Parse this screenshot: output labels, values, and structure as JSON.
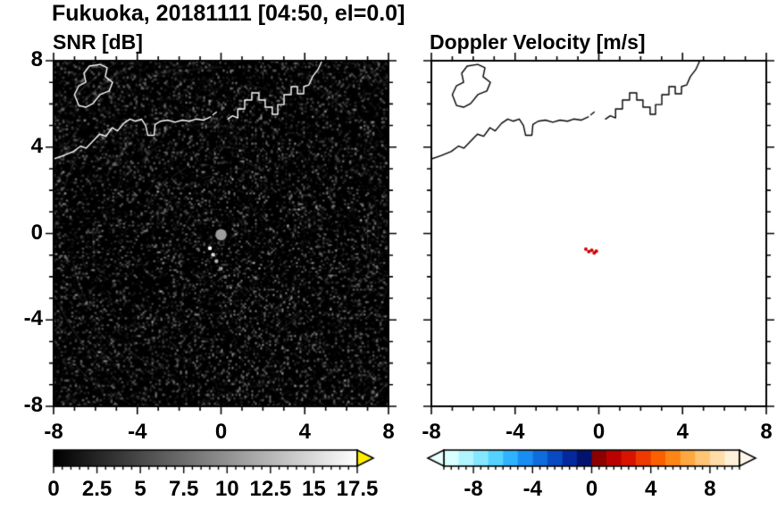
{
  "title": "Fukuoka, 20181111 [04:50, el=0.0]",
  "panels": {
    "snr": {
      "label": "SNR [dB]"
    },
    "doppler": {
      "label": "Doppler Velocity [m/s]"
    }
  },
  "coastline": {
    "polylines": [
      {
        "name": "coast-west",
        "closed": false,
        "points": [
          [
            -8,
            3.45
          ],
          [
            -7.55,
            3.6
          ],
          [
            -7.05,
            3.8
          ],
          [
            -6.7,
            4.05
          ],
          [
            -6.45,
            3.95
          ],
          [
            -6.1,
            4.3
          ],
          [
            -5.8,
            4.6
          ],
          [
            -5.5,
            4.5
          ],
          [
            -5.2,
            4.9
          ],
          [
            -4.95,
            4.75
          ],
          [
            -4.65,
            5.1
          ],
          [
            -4.35,
            5.3
          ],
          [
            -4.1,
            5.2
          ],
          [
            -3.8,
            5.3
          ],
          [
            -3.6,
            5.0
          ],
          [
            -3.5,
            4.55
          ],
          [
            -3.2,
            4.55
          ],
          [
            -3.15,
            5.05
          ],
          [
            -2.9,
            5.2
          ],
          [
            -2.55,
            5.25
          ],
          [
            -2.2,
            5.15
          ],
          [
            -1.85,
            5.25
          ],
          [
            -1.5,
            5.2
          ],
          [
            -1.2,
            5.3
          ],
          [
            -0.85,
            5.25
          ],
          [
            -0.5,
            5.4
          ]
        ]
      },
      {
        "name": "islet",
        "closed": false,
        "points": [
          [
            -0.38,
            5.5
          ],
          [
            -0.22,
            5.62
          ]
        ]
      },
      {
        "name": "port-piers-and-coast-east",
        "closed": false,
        "points": [
          [
            0.32,
            5.3
          ],
          [
            0.55,
            5.45
          ],
          [
            0.8,
            5.35
          ],
          [
            0.8,
            5.77
          ],
          [
            1.13,
            5.77
          ],
          [
            1.13,
            6.18
          ],
          [
            1.47,
            6.18
          ],
          [
            1.47,
            6.51
          ],
          [
            1.81,
            6.51
          ],
          [
            1.81,
            6.18
          ],
          [
            2.11,
            6.18
          ],
          [
            2.11,
            5.85
          ],
          [
            2.45,
            5.85
          ],
          [
            2.45,
            5.52
          ],
          [
            2.71,
            5.52
          ],
          [
            2.71,
            5.97
          ],
          [
            3.01,
            5.97
          ],
          [
            3.01,
            6.43
          ],
          [
            3.35,
            6.43
          ],
          [
            3.35,
            6.8
          ],
          [
            3.65,
            6.8
          ],
          [
            3.65,
            6.47
          ],
          [
            3.95,
            6.47
          ],
          [
            3.95,
            6.8
          ],
          [
            4.2,
            6.88
          ],
          [
            4.37,
            7.26
          ],
          [
            4.63,
            7.59
          ],
          [
            4.8,
            7.95
          ]
        ]
      },
      {
        "name": "island-northwest",
        "closed": true,
        "points": [
          [
            -6.8,
            5.93
          ],
          [
            -7.0,
            6.43
          ],
          [
            -6.8,
            6.84
          ],
          [
            -6.46,
            7.0
          ],
          [
            -6.55,
            7.42
          ],
          [
            -6.29,
            7.75
          ],
          [
            -5.78,
            7.83
          ],
          [
            -5.44,
            7.67
          ],
          [
            -5.53,
            7.26
          ],
          [
            -5.18,
            7.0
          ],
          [
            -5.35,
            6.6
          ],
          [
            -5.78,
            6.43
          ],
          [
            -6.12,
            6.02
          ],
          [
            -6.46,
            5.85
          ]
        ]
      }
    ]
  },
  "chart_data": [
    {
      "type": "heatmap",
      "panel": "snr",
      "title": "SNR [dB]",
      "xlim": [
        -8,
        8
      ],
      "ylim": [
        -8,
        8
      ],
      "xticks": [
        -8,
        -4,
        0,
        4,
        8
      ],
      "xticklabels": [
        "-8",
        "-4",
        "0",
        "4",
        "8"
      ],
      "yticks": [
        8,
        4,
        0,
        -4,
        -8
      ],
      "yticklabels": [
        "8",
        "4",
        "0",
        "-4",
        "-8"
      ],
      "minor_tick_step": 1,
      "background": "#060606",
      "coast_color": "#ffffff",
      "style": "speckle-noise",
      "noise_description": "low-SNR receiver noise speckle (~0-4 dB) filling the scan area",
      "colorbar": {
        "min": 0,
        "max": 17.5,
        "label_values": [
          0,
          2.5,
          5,
          7.5,
          10,
          12.5,
          15,
          17.5
        ],
        "labels": [
          "0",
          "2.5",
          "5",
          "7.5",
          "10",
          "12.5",
          "15",
          "17.5"
        ],
        "tick_step": 0.5,
        "colormap": "grayscale",
        "stops": [
          [
            0,
            "#000000"
          ],
          [
            17.5,
            "#ffffff"
          ]
        ],
        "over_color": "#ffee00"
      },
      "features": [
        {
          "name": "radar-site-echo",
          "shape": "disc",
          "x": 0,
          "y": -0.05,
          "r": 0.27,
          "color": "#9c9c9c"
        },
        {
          "name": "target-echo-streak",
          "shape": "dots",
          "color": "#ffffff",
          "size": 2.2,
          "fade": true,
          "points": [
            [
              -0.53,
              -0.68
            ],
            [
              -0.38,
              -0.98
            ],
            [
              -0.22,
              -1.28
            ],
            [
              -0.02,
              -1.62
            ],
            [
              0.2,
              -2.0
            ],
            [
              0.45,
              -2.45
            ]
          ]
        }
      ]
    },
    {
      "type": "heatmap",
      "panel": "doppler",
      "title": "Doppler Velocity [m/s]",
      "xlim": [
        -8,
        8
      ],
      "ylim": [
        -8,
        8
      ],
      "xticks": [
        -8,
        -4,
        0,
        4,
        8
      ],
      "xticklabels": [
        "-8",
        "-4",
        "0",
        "4",
        "8"
      ],
      "yticks": [
        8,
        4,
        0,
        -4,
        -8
      ],
      "yticklabels": [
        "8",
        "4",
        "0",
        "-4",
        "-8"
      ],
      "minor_tick_step": 1,
      "background": "#ffffff",
      "coast_color": "#000000",
      "style": "blank",
      "colorbar": {
        "min": -10,
        "max": 10,
        "label_values": [
          -8,
          -4,
          0,
          4,
          8
        ],
        "labels": [
          "-8",
          "-4",
          "0",
          "4",
          "8"
        ],
        "tick_step": 0.5,
        "colormap": "doppler-diverging",
        "bands": [
          [
            -10,
            "#d8ffff"
          ],
          [
            -9,
            "#b0f4ff"
          ],
          [
            -8,
            "#84e6ff"
          ],
          [
            -7,
            "#55d2ff"
          ],
          [
            -6,
            "#2fb2ff"
          ],
          [
            -5,
            "#188ef2"
          ],
          [
            -4,
            "#0e6cdd"
          ],
          [
            -3,
            "#084ac2"
          ],
          [
            -2,
            "#04289e"
          ],
          [
            -1,
            "#02136e"
          ],
          [
            0,
            "#8c0000"
          ],
          [
            1,
            "#ba0000"
          ],
          [
            2,
            "#d81400"
          ],
          [
            3,
            "#ee3900"
          ],
          [
            4,
            "#fa6000"
          ],
          [
            5,
            "#ff8514"
          ],
          [
            6,
            "#ffa740"
          ],
          [
            7,
            "#ffc474"
          ],
          [
            8,
            "#ffdca8"
          ],
          [
            9,
            "#fff0d8"
          ]
        ],
        "under_color": "#eaffff",
        "over_color": "#fff7ea"
      },
      "features": [
        {
          "name": "velocity-echo",
          "shape": "dots",
          "color": "#cc0000",
          "size": 2.0,
          "points": [
            [
              -0.62,
              -0.72
            ],
            [
              -0.48,
              -0.84
            ],
            [
              -0.34,
              -0.78
            ],
            [
              -0.22,
              -0.9
            ],
            [
              -0.12,
              -0.82
            ]
          ]
        }
      ]
    }
  ]
}
